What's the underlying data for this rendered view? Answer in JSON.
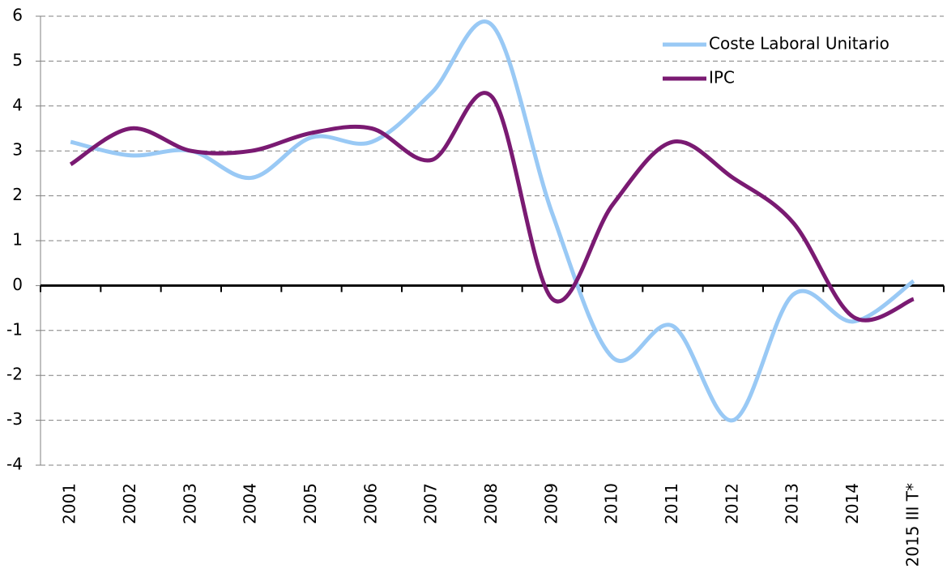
{
  "chart_data": {
    "type": "line",
    "categories": [
      "2001",
      "2002",
      "2003",
      "2004",
      "2005",
      "2006",
      "2007",
      "2008",
      "2009",
      "2010",
      "2011",
      "2012",
      "2013",
      "2014",
      "2015 III T*"
    ],
    "series": [
      {
        "name": "Coste Laboral Unitario",
        "color": "#99c9f5",
        "values": [
          3.2,
          2.9,
          3.0,
          2.4,
          3.3,
          3.2,
          4.3,
          5.8,
          1.6,
          -1.6,
          -0.9,
          -3.0,
          -0.2,
          -0.8,
          0.1
        ]
      },
      {
        "name": "IPC",
        "color": "#7a1a72",
        "values": [
          2.7,
          3.5,
          3.0,
          3.0,
          3.4,
          3.5,
          2.8,
          4.2,
          -0.3,
          1.8,
          3.2,
          2.4,
          1.4,
          -0.7,
          -0.3
        ]
      }
    ],
    "ylim": [
      -4,
      6
    ],
    "yticks": [
      -4,
      -3,
      -2,
      -1,
      0,
      1,
      2,
      3,
      4,
      5,
      6
    ],
    "grid": true,
    "legend": "upper right"
  }
}
